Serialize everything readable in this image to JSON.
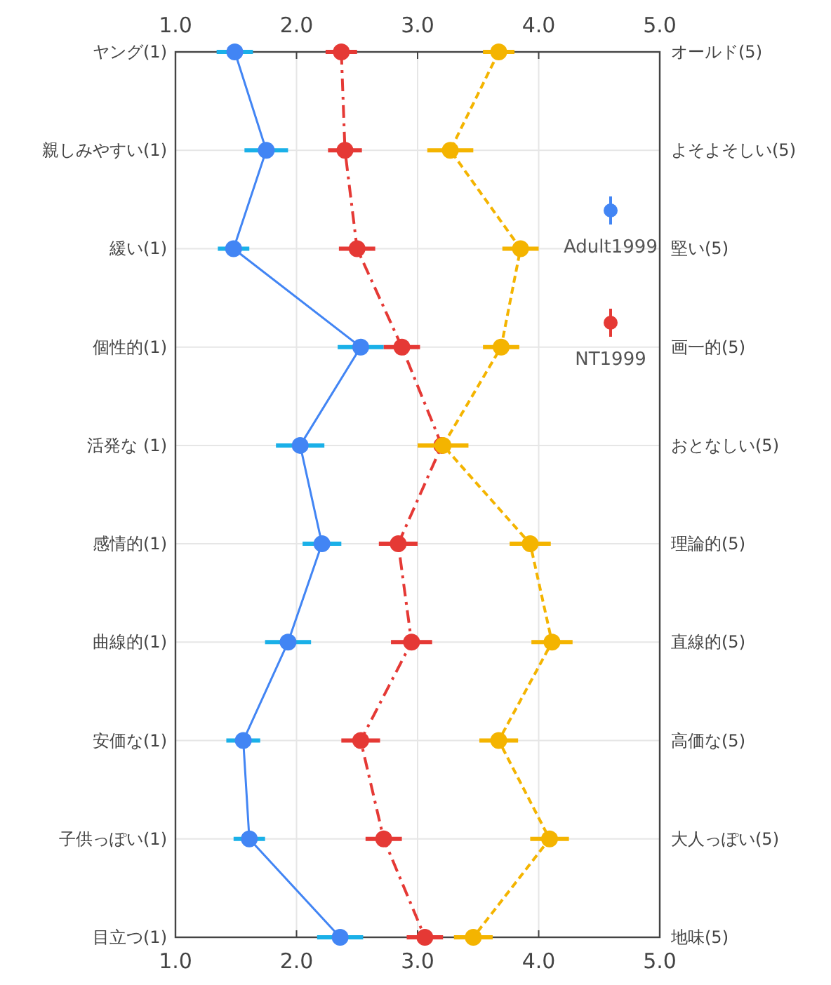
{
  "chart_data": {
    "type": "line",
    "orientation": "horizontal",
    "categories": [
      "ヤング(1)",
      "親しみやすい(1)",
      "緩い(1)",
      "個性的(1)",
      "活発な (1)",
      "感情的(1)",
      "曲線的(1)",
      "安価な(1)",
      "子供っぽい(1)",
      "目立つ(1)"
    ],
    "y2_categories": [
      "オールド(5)",
      "よそよそしい(5)",
      "堅い(5)",
      "画一的(5)",
      "おとなしい(5)",
      "理論的(5)",
      "直線的(5)",
      "高価な(5)",
      "大人っぽい(5)",
      "地味(5)"
    ],
    "xlim": [
      1,
      5
    ],
    "xticks": [
      {
        "value": 1,
        "label": "1.0"
      },
      {
        "value": 2,
        "label": "2.0"
      },
      {
        "value": 3,
        "label": "3.0"
      },
      {
        "value": 4,
        "label": "4.0"
      },
      {
        "value": 5,
        "label": "5.0"
      }
    ],
    "x2lim": [
      1,
      5
    ],
    "x2ticks": [
      {
        "value": 1,
        "label": "1.0"
      },
      {
        "value": 2,
        "label": "2.0"
      },
      {
        "value": 3,
        "label": "3.0"
      },
      {
        "value": 4,
        "label": "4.0"
      },
      {
        "value": 5,
        "label": "5.0"
      }
    ],
    "grid": true,
    "legend": "right",
    "marker": "circle",
    "series": [
      {
        "name": "Adult1999",
        "color": "#4285f4",
        "line_style": "solid",
        "values": [
          1.49,
          1.75,
          1.48,
          2.53,
          2.03,
          2.21,
          1.93,
          1.56,
          1.61,
          2.36
        ],
        "errors": [
          0.15,
          0.18,
          0.13,
          0.19,
          0.2,
          0.16,
          0.19,
          0.14,
          0.13,
          0.19
        ]
      },
      {
        "name": "NT1999",
        "color": "#e53935",
        "line_style": "dashed",
        "values": [
          2.37,
          2.4,
          2.5,
          2.87,
          3.2,
          2.84,
          2.95,
          2.53,
          2.72,
          3.06
        ],
        "errors": [
          0.13,
          0.14,
          0.15,
          0.15,
          null,
          0.16,
          0.17,
          0.16,
          0.15,
          0.15
        ]
      },
      {
        "color": "#f4b400",
        "line_style": "dotted",
        "values": [
          3.67,
          3.27,
          3.85,
          3.69,
          3.21,
          3.93,
          4.11,
          3.67,
          4.09,
          3.46
        ],
        "errors": [
          0.13,
          0.19,
          0.15,
          0.15,
          0.21,
          0.17,
          0.17,
          0.16,
          0.16,
          0.16
        ]
      }
    ]
  }
}
